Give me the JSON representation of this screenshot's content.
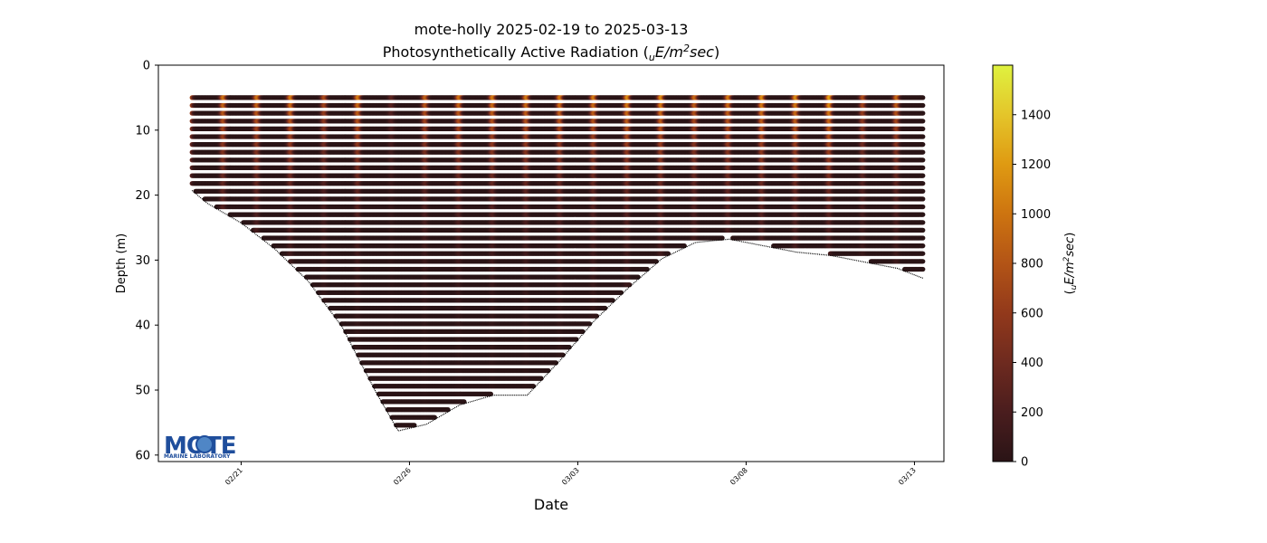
{
  "chart_data": {
    "type": "scatter",
    "title_line1": "mote-holly 2025-02-19 to 2025-03-13",
    "title_line2_prefix": "Photosynthetically Active Radiation (",
    "title_line2_sub": "u",
    "title_line2_italic": "E/m",
    "title_line2_sup": "2",
    "title_line2_suffix_italic": "sec",
    "title_line2_close": ")",
    "xlabel": "Date",
    "ylabel": "Depth (m)",
    "y_inverted": true,
    "ylim": [
      0,
      61
    ],
    "yticks": [
      0,
      10,
      20,
      30,
      40,
      50,
      60
    ],
    "xlim": [
      "2025-02-18T13:00",
      "2025-03-13T21:00"
    ],
    "xticks": [
      {
        "date": "2025-02-21",
        "label": "02/21"
      },
      {
        "date": "2025-02-26",
        "label": "02/26"
      },
      {
        "date": "2025-03-03",
        "label": "03/03"
      },
      {
        "date": "2025-03-08",
        "label": "03/08"
      },
      {
        "date": "2025-03-13",
        "label": "03/13"
      }
    ],
    "colorbar": {
      "label_prefix": "(",
      "label_sub": "u",
      "label_italic": "E/m",
      "label_sup": "2",
      "label_suffix_italic": "sec",
      "label_close": ")",
      "min": 0,
      "max": 1600,
      "ticks": [
        0,
        200,
        400,
        600,
        800,
        1000,
        1200,
        1400
      ],
      "colors": [
        "#2a1416",
        "#4a1d1e",
        "#6e2a1f",
        "#92391b",
        "#b35416",
        "#cd7410",
        "#df9a12",
        "#e4c52a",
        "#dff23f"
      ]
    },
    "series": [
      {
        "surface_depth_m": 5,
        "daily_peak_par_near_surface": [
          {
            "date": "2025-02-19T12:00",
            "value": 900
          },
          {
            "date": "2025-02-20T12:00",
            "value": 1000
          },
          {
            "date": "2025-02-21T12:00",
            "value": 1000
          },
          {
            "date": "2025-02-22T12:00",
            "value": 1050
          },
          {
            "date": "2025-02-23T12:00",
            "value": 750
          },
          {
            "date": "2025-02-24T12:00",
            "value": 1050
          },
          {
            "date": "2025-02-25T12:00",
            "value": 300
          },
          {
            "date": "2025-02-26T12:00",
            "value": 900
          },
          {
            "date": "2025-02-27T12:00",
            "value": 1000
          },
          {
            "date": "2025-02-28T12:00",
            "value": 1050
          },
          {
            "date": "2025-03-01T12:00",
            "value": 1050
          },
          {
            "date": "2025-03-02T12:00",
            "value": 1050
          },
          {
            "date": "2025-03-03T12:00",
            "value": 1050
          },
          {
            "date": "2025-03-04T12:00",
            "value": 1150
          },
          {
            "date": "2025-03-05T12:00",
            "value": 1150
          },
          {
            "date": "2025-03-06T12:00",
            "value": 950
          },
          {
            "date": "2025-03-07T12:00",
            "value": 1050
          },
          {
            "date": "2025-03-08T12:00",
            "value": 1150
          },
          {
            "date": "2025-03-09T12:00",
            "value": 1150
          },
          {
            "date": "2025-03-10T12:00",
            "value": 1250
          },
          {
            "date": "2025-03-11T12:00",
            "value": 750
          },
          {
            "date": "2025-03-12T12:00",
            "value": 950
          },
          {
            "date": "2025-03-13T12:00",
            "value": 950
          }
        ],
        "bottom_depth_profile": [
          {
            "date": "2025-02-19T13:00",
            "depth": 19
          },
          {
            "date": "2025-02-20T00:00",
            "depth": 21
          },
          {
            "date": "2025-02-21T00:00",
            "depth": 24
          },
          {
            "date": "2025-02-22T00:00",
            "depth": 28
          },
          {
            "date": "2025-02-23T00:00",
            "depth": 33
          },
          {
            "date": "2025-02-24T00:00",
            "depth": 40
          },
          {
            "date": "2025-02-25T00:00",
            "depth": 50
          },
          {
            "date": "2025-02-25T16:00",
            "depth": 56
          },
          {
            "date": "2025-02-26T12:00",
            "depth": 55
          },
          {
            "date": "2025-02-27T12:00",
            "depth": 52
          },
          {
            "date": "2025-02-28T12:00",
            "depth": 50.5
          },
          {
            "date": "2025-03-01T12:00",
            "depth": 50.5
          },
          {
            "date": "2025-03-02T12:00",
            "depth": 45
          },
          {
            "date": "2025-03-03T12:00",
            "depth": 39
          },
          {
            "date": "2025-03-04T12:00",
            "depth": 34
          },
          {
            "date": "2025-03-05T12:00",
            "depth": 29.5
          },
          {
            "date": "2025-03-06T12:00",
            "depth": 27
          },
          {
            "date": "2025-03-07T12:00",
            "depth": 26.5
          },
          {
            "date": "2025-03-08T12:00",
            "depth": 27.5
          },
          {
            "date": "2025-03-09T12:00",
            "depth": 28.5
          },
          {
            "date": "2025-03-10T12:00",
            "depth": 29
          },
          {
            "date": "2025-03-11T12:00",
            "depth": 30
          },
          {
            "date": "2025-03-12T12:00",
            "depth": 31
          },
          {
            "date": "2025-03-13T06:00",
            "depth": 32.5
          }
        ]
      }
    ]
  },
  "logo": {
    "wordmark": "MOTE",
    "tagline": "MARINE LABORATORY",
    "color": "#1f4e9c"
  }
}
